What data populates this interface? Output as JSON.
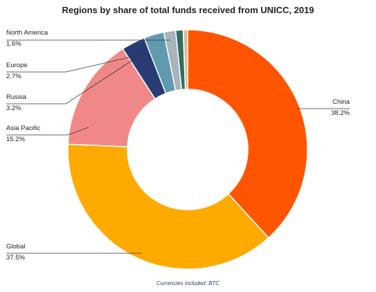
{
  "chart_data": {
    "type": "pie",
    "title": "Regions by share of total funds received from UNICC, 2019",
    "footnote": "Currencies included: BTC",
    "slices": [
      {
        "label": "China",
        "value_label": "38.2%",
        "value": 38.2,
        "color": "#ff5500"
      },
      {
        "label": "Global",
        "value_label": "37.5%",
        "value": 37.5,
        "color": "#ffaa00"
      },
      {
        "label": "Asia Pacific",
        "value_label": "15.2%",
        "value": 15.2,
        "color": "#f08888"
      },
      {
        "label": "Russia",
        "value_label": "3.2%",
        "value": 3.2,
        "color": "#283b73"
      },
      {
        "label": "Europe",
        "value_label": "2.7%",
        "value": 2.7,
        "color": "#5f9aae"
      },
      {
        "label": "North America",
        "value_label": "1.6%",
        "value": 1.6,
        "color": "#a8b3bb"
      },
      {
        "label": "",
        "value_label": "",
        "value": 1.0,
        "color": "#2f6e63"
      },
      {
        "label": "",
        "value_label": "",
        "value": 0.6,
        "color": "#e8b98a"
      }
    ]
  }
}
